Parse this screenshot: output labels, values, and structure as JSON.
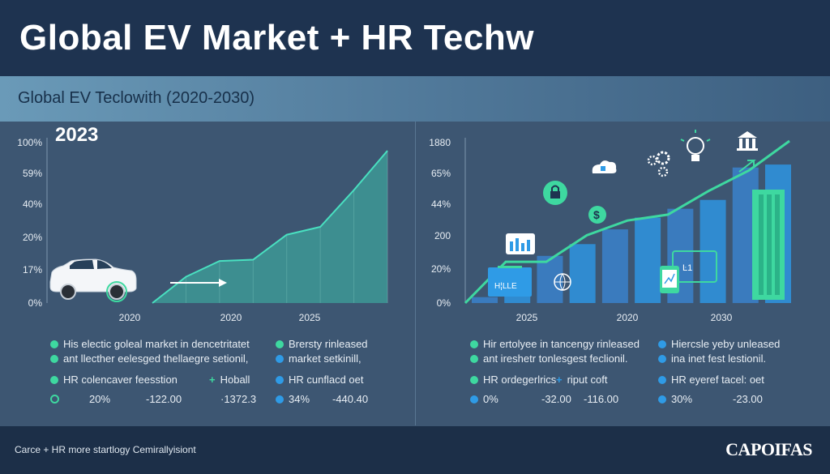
{
  "header": {
    "title": "Global EV Market + HR Techw"
  },
  "subheader": {
    "subtitle": "Global EV Teclowith (2020-2030)"
  },
  "footer": {
    "caption": "Carce + HR more startlogy Cemirallyisiont",
    "brand": "CAPOIFAS"
  },
  "colors": {
    "accent_green": "#3ed8a0",
    "accent_blue": "#2f9be6",
    "navy": "#1e3350"
  },
  "chart_data": [
    {
      "type": "area",
      "title": "",
      "highlight": "2023",
      "y_ticks": [
        "100%",
        "59%",
        "40%",
        "20%",
        "17%",
        "0%"
      ],
      "x_ticks": [
        "2020",
        "2020",
        "2025"
      ],
      "series": [
        {
          "values": [
            0,
            10,
            16,
            16.5,
            26,
            29,
            43,
            58
          ]
        }
      ],
      "ylim": [
        0,
        58
      ],
      "icons": [
        "car-icon",
        "arrow-right-icon"
      ]
    },
    {
      "type": "bar",
      "title": "",
      "y_ticks": [
        "1880",
        "65%",
        "44%",
        "200",
        "20%",
        "0%"
      ],
      "x_ticks": [
        "2025",
        "2020",
        "2030"
      ],
      "values": [
        2,
        10,
        16,
        20,
        25,
        29,
        32,
        35,
        46,
        47
      ],
      "trend": [
        0,
        14,
        14,
        23,
        28,
        30,
        38,
        45,
        55
      ],
      "ylim": [
        0,
        55
      ],
      "icons": [
        "dashboard-icon",
        "lock-icon",
        "cloud-icon",
        "dollar-icon",
        "gears-icon",
        "lightbulb-icon",
        "bank-icon",
        "chart-board-icon",
        "building-icon",
        "tablet-icon",
        "globe-icon"
      ]
    }
  ],
  "legend_left": {
    "r1a": "His electic goleal market in dencetritatet",
    "r1b": "Brersty rinleased",
    "r2a": "ant llecther eelesged thellaegre setionil,",
    "r2b": "market setkinill,",
    "r3a": "HR colencaver feesstion",
    "r3b": "Hoball",
    "r3c": "HR cunflacd oet",
    "r4a": "20%",
    "r4b": "-122.00",
    "r4c": "·1372.3",
    "r4d": "34%",
    "r4e": "-440.40"
  },
  "legend_right": {
    "r1a": "Hir ertolyee in tancengy rinleased",
    "r1b": "Hiercsle yeby unleased",
    "r2a": "ant ireshetr tonlesgest feclionil.",
    "r2b": "ina inet fest lestionil.",
    "r3a": "HR ordegerlrics",
    "r3b": "riput coft",
    "r3c": "HR eyeref tacel: oet",
    "r4a": "0%",
    "r4b": "-32.00",
    "r4c": "-116.00",
    "r4d": "30%",
    "r4e": "-23.00"
  }
}
